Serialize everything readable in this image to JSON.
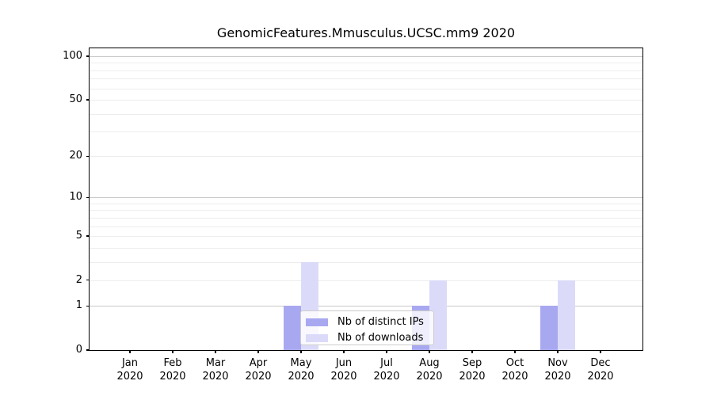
{
  "title": "GenomicFeatures.Mmusculus.UCSC.mm9 2020",
  "chart_data": {
    "type": "bar",
    "title": "GenomicFeatures.Mmusculus.UCSC.mm9 2020",
    "categories": [
      "Jan",
      "Feb",
      "Mar",
      "Apr",
      "May",
      "Jun",
      "Jul",
      "Aug",
      "Sep",
      "Oct",
      "Nov",
      "Dec"
    ],
    "x_tick_second_line": "2020",
    "series": [
      {
        "name": "Nb of distinct IPs",
        "color": "#a8a8f1",
        "values": [
          0,
          0,
          0,
          0,
          1,
          0,
          0,
          1,
          0,
          0,
          1,
          0
        ]
      },
      {
        "name": "Nb of downloads",
        "color": "#dbdbf9",
        "values": [
          0,
          0,
          0,
          0,
          3,
          0,
          0,
          2,
          0,
          0,
          2,
          0
        ]
      }
    ],
    "xlabel": "",
    "ylabel": "",
    "y_scale": "log1p",
    "ylim": [
      0,
      113
    ],
    "y_ticks": [
      0,
      1,
      2,
      5,
      10,
      20,
      50,
      100
    ],
    "y_minor_gridlines": [
      2,
      3,
      4,
      5,
      6,
      7,
      8,
      9,
      20,
      30,
      40,
      50,
      60,
      70,
      80,
      90
    ],
    "y_major_gridlines": [
      1,
      10,
      100
    ],
    "grid": "horizontal",
    "legend_position": "bottom-center"
  },
  "colors": {
    "background": "#ffffff",
    "bar_distinct_ips": "#a8a8f1",
    "bar_downloads": "#dbdbf9",
    "grid_major": "#c9c9c9",
    "grid_minor": "#ededed",
    "axis": "#000000"
  }
}
